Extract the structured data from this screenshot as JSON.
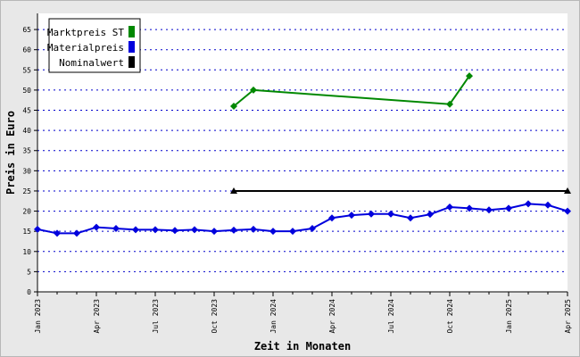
{
  "chart_data": {
    "type": "line",
    "xlabel": "Zeit in Monaten",
    "ylabel": "Preis in Euro",
    "ylim": [
      0,
      69
    ],
    "yticks": [
      0,
      5,
      10,
      15,
      20,
      25,
      30,
      35,
      40,
      45,
      50,
      55,
      60,
      65
    ],
    "grid": "horizontal dotted",
    "legend_position": "top-left",
    "months": 27,
    "x_tick_labels": [
      {
        "month": 0,
        "label": "Jan 2023"
      },
      {
        "month": 3,
        "label": "Apr 2023"
      },
      {
        "month": 6,
        "label": "Jul 2023"
      },
      {
        "month": 9,
        "label": "Oct 2023"
      },
      {
        "month": 12,
        "label": "Jan 2024"
      },
      {
        "month": 15,
        "label": "Apr 2024"
      },
      {
        "month": 18,
        "label": "Jul 2024"
      },
      {
        "month": 21,
        "label": "Oct 2024"
      },
      {
        "month": 24,
        "label": "Jan 2025"
      },
      {
        "month": 27,
        "label": "Apr 2025"
      }
    ],
    "series": [
      {
        "name": "Marktpreis ST",
        "color": "#008800",
        "marker": "diamond",
        "points": [
          {
            "month": 10,
            "value": 46.0
          },
          {
            "month": 11,
            "value": 50.0
          },
          {
            "month": 21,
            "value": 46.5
          },
          {
            "month": 22,
            "value": 53.5
          }
        ]
      },
      {
        "name": "Materialpreis",
        "color": "#0000dd",
        "marker": "diamond",
        "points": [
          {
            "month": 0,
            "value": 15.5
          },
          {
            "month": 1,
            "value": 14.5
          },
          {
            "month": 2,
            "value": 14.5
          },
          {
            "month": 3,
            "value": 16.0
          },
          {
            "month": 4,
            "value": 15.7
          },
          {
            "month": 5,
            "value": 15.4
          },
          {
            "month": 6,
            "value": 15.4
          },
          {
            "month": 7,
            "value": 15.2
          },
          {
            "month": 8,
            "value": 15.4
          },
          {
            "month": 9,
            "value": 15.0
          },
          {
            "month": 10,
            "value": 15.3
          },
          {
            "month": 11,
            "value": 15.5
          },
          {
            "month": 12,
            "value": 15.0
          },
          {
            "month": 13,
            "value": 15.0
          },
          {
            "month": 14,
            "value": 15.7
          },
          {
            "month": 15,
            "value": 18.3
          },
          {
            "month": 16,
            "value": 19.0
          },
          {
            "month": 17,
            "value": 19.3
          },
          {
            "month": 18,
            "value": 19.3
          },
          {
            "month": 19,
            "value": 18.3
          },
          {
            "month": 20,
            "value": 19.2
          },
          {
            "month": 21,
            "value": 21.0
          },
          {
            "month": 22,
            "value": 20.7
          },
          {
            "month": 23,
            "value": 20.3
          },
          {
            "month": 24,
            "value": 20.7
          },
          {
            "month": 25,
            "value": 21.8
          },
          {
            "month": 26,
            "value": 21.5
          },
          {
            "month": 27,
            "value": 20.0
          }
        ]
      },
      {
        "name": "Nominalwert",
        "color": "#000000",
        "marker": "triangle",
        "points": [
          {
            "month": 10,
            "value": 25.0
          },
          {
            "month": 27,
            "value": 25.0
          }
        ]
      }
    ]
  }
}
